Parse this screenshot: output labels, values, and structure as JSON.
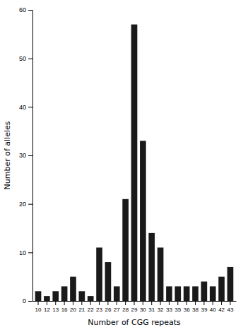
{
  "chart_data": {
    "type": "bar",
    "categories": [
      "10",
      "12",
      "13",
      "16",
      "20",
      "21",
      "22",
      "23",
      "26",
      "27",
      "28",
      "29",
      "30",
      "31",
      "32",
      "33",
      "35",
      "36",
      "38",
      "39",
      "40",
      "42",
      "43"
    ],
    "values": [
      2,
      1,
      2,
      3,
      5,
      2,
      1,
      11,
      8,
      3,
      21,
      57,
      33,
      14,
      11,
      3,
      3,
      3,
      3,
      4,
      3,
      5,
      7
    ],
    "color": "#1a1a1a",
    "xlabel": "Number of CGG repeats",
    "ylabel": "Number of alleles",
    "ylim": [
      0,
      60
    ],
    "yticks": [
      0,
      10,
      20,
      30,
      40,
      50,
      60
    ],
    "grid": false
  }
}
